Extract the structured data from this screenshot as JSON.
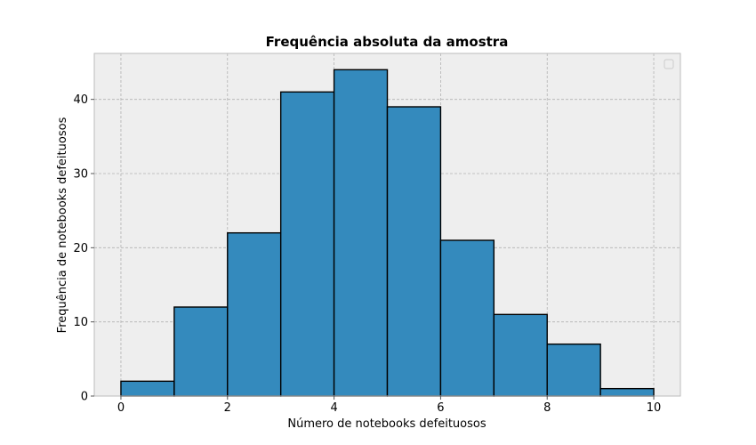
{
  "chart_data": {
    "type": "bar",
    "title": "Frequência absoluta da amostra",
    "xlabel": "Número de notebooks defeituosos",
    "ylabel": "Frequência de notebooks defeituosos",
    "bins": [
      {
        "from": 0,
        "to": 1,
        "value": 2
      },
      {
        "from": 1,
        "to": 2,
        "value": 12
      },
      {
        "from": 2,
        "to": 3,
        "value": 22
      },
      {
        "from": 3,
        "to": 4,
        "value": 41
      },
      {
        "from": 4,
        "to": 5,
        "value": 44
      },
      {
        "from": 5,
        "to": 6,
        "value": 39
      },
      {
        "from": 6,
        "to": 7,
        "value": 21
      },
      {
        "from": 7,
        "to": 8,
        "value": 11
      },
      {
        "from": 8,
        "to": 9,
        "value": 7
      },
      {
        "from": 9,
        "to": 10,
        "value": 1
      }
    ],
    "xlim": [
      -0.5,
      10.5
    ],
    "ylim": [
      0,
      46.2
    ],
    "xticks": [
      0,
      2,
      4,
      6,
      8,
      10
    ],
    "yticks": [
      0,
      10,
      20,
      30,
      40
    ],
    "grid": true,
    "legend": "top-right",
    "colors": {
      "bar_fill": "#348ABD",
      "bar_edge": "#000000",
      "plot_background": "#EEEEEE",
      "grid": "#B2B2B2",
      "axes_edge": "#BCBCBC"
    }
  }
}
